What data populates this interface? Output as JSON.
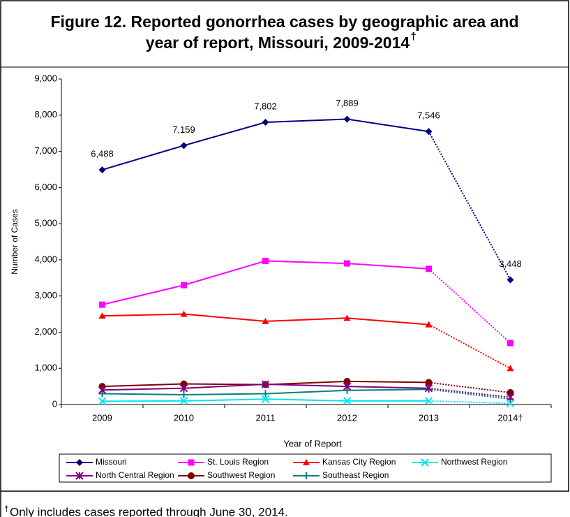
{
  "chart_data": {
    "type": "line",
    "title_lines": [
      "Figure 12.  Reported gonorrhea cases by geographic area and",
      "year of report, Missouri, 2009-2014"
    ],
    "title_mark": "†",
    "x_label": "Year of Report",
    "y_label": "Number of Cases",
    "categories": [
      "2009",
      "2010",
      "2011",
      "2012",
      "2013",
      "2014†"
    ],
    "ylim": [
      0,
      9000
    ],
    "yticks": [
      0,
      {
        "value": 1000,
        "label": "1,000"
      },
      {
        "value": 2000,
        "label": "2,000"
      },
      {
        "value": 3000,
        "label": "3,000"
      },
      {
        "value": 4000,
        "label": "4,000"
      },
      {
        "value": 5000,
        "label": "5,000"
      },
      {
        "value": 6000,
        "label": "6,000"
      },
      {
        "value": 7000,
        "label": "7,000"
      },
      {
        "value": 8000,
        "label": "8,000"
      },
      {
        "value": 9000,
        "label": "9,000"
      }
    ],
    "dotted_from_index": 4,
    "series": [
      {
        "name": "Missouri",
        "color": "#000080",
        "marker": "diamond",
        "values": [
          6488,
          7159,
          7802,
          7889,
          7546,
          3448
        ],
        "value_labels": [
          "6,488",
          "7,159",
          "7,802",
          "7,889",
          "7,546",
          "3,448"
        ]
      },
      {
        "name": "St. Louis Region",
        "color": "#ff00ff",
        "marker": "square",
        "values": [
          2760,
          3300,
          3970,
          3900,
          3750,
          1700
        ]
      },
      {
        "name": "Kansas City Region",
        "color": "#ff0000",
        "marker": "triangle",
        "values": [
          2450,
          2500,
          2300,
          2390,
          2210,
          1000
        ]
      },
      {
        "name": "Northwest Region",
        "color": "#00e5ee",
        "marker": "x",
        "values": [
          90,
          100,
          150,
          100,
          100,
          30
        ]
      },
      {
        "name": "North Central Region",
        "color": "#800080",
        "marker": "asterisk",
        "values": [
          400,
          450,
          560,
          500,
          450,
          200
        ]
      },
      {
        "name": "Southwest Region",
        "color": "#800000",
        "marker": "circle",
        "values": [
          500,
          570,
          550,
          640,
          610,
          330
        ]
      },
      {
        "name": "Southeast Region",
        "color": "#008080",
        "marker": "plus",
        "values": [
          300,
          270,
          300,
          390,
          420,
          150
        ]
      }
    ],
    "footnote_mark": "†",
    "footnote": "Only includes cases reported through June 30, 2014."
  }
}
